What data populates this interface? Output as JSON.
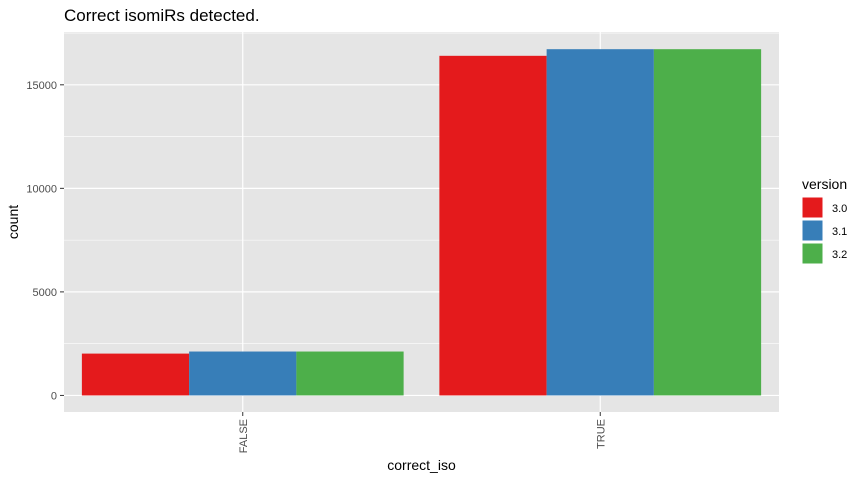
{
  "chart_data": {
    "type": "bar",
    "title": "Correct isomiRs detected.",
    "xlabel": "correct_iso",
    "ylabel": "count",
    "categories": [
      "FALSE",
      "TRUE"
    ],
    "series": [
      {
        "name": "3.0",
        "color": "#e41a1c",
        "values": [
          2020,
          16400
        ]
      },
      {
        "name": "3.1",
        "color": "#377eb8",
        "values": [
          2120,
          16720
        ]
      },
      {
        "name": "3.2",
        "color": "#4daf4a",
        "values": [
          2120,
          16720
        ]
      }
    ],
    "y_ticks": [
      0,
      5000,
      10000,
      15000
    ],
    "ylim": [
      -800,
      17550
    ],
    "legend": {
      "title": "version",
      "position": "right"
    },
    "grid": true,
    "panel_background": "#e5e5e5",
    "grid_color": "#ffffff"
  }
}
